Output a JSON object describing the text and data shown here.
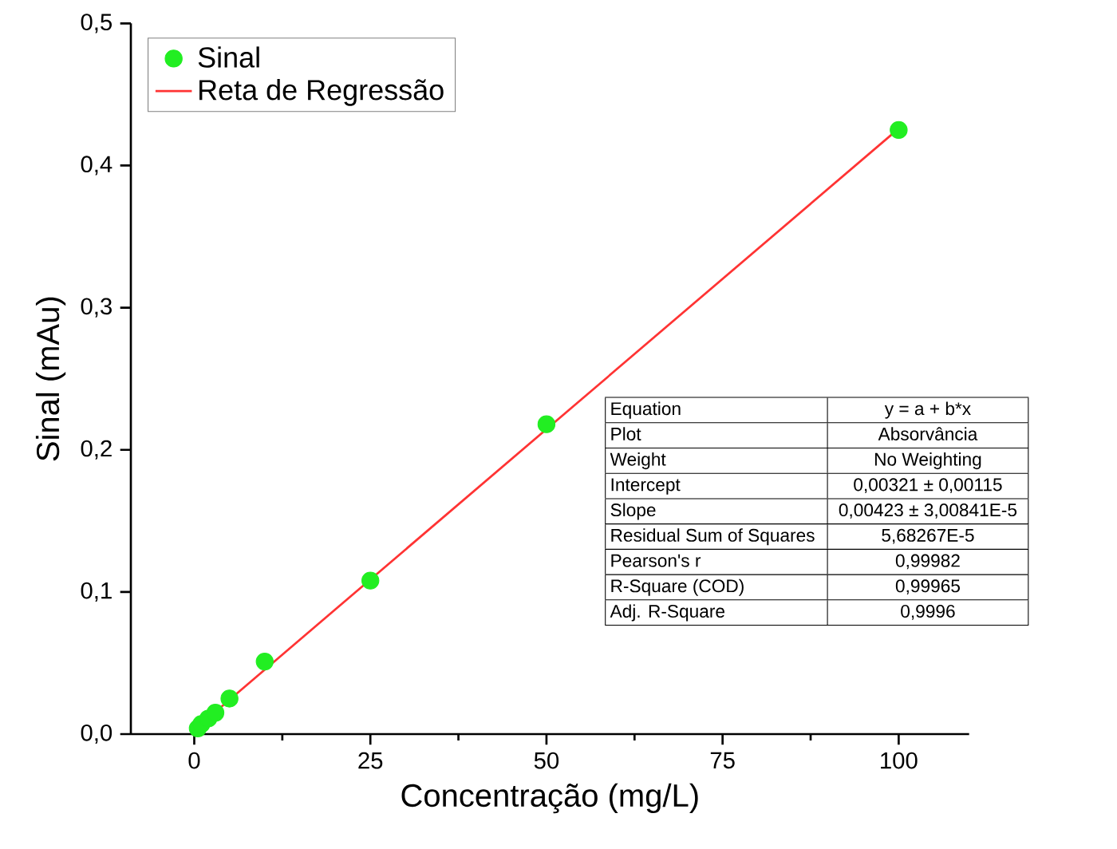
{
  "chart_data": {
    "type": "scatter",
    "xlabel": "Concentração (mg/L)",
    "ylabel": "Sinal (mAu)",
    "xlim": [
      -9,
      110
    ],
    "ylim": [
      0,
      0.5
    ],
    "xticks": [
      0,
      25,
      50,
      75,
      100
    ],
    "yticks": [
      {
        "value": 0,
        "label": "0,0"
      },
      {
        "value": 0.1,
        "label": "0,1"
      },
      {
        "value": 0.2,
        "label": "0,2"
      },
      {
        "value": 0.3,
        "label": "0,3"
      },
      {
        "value": 0.4,
        "label": "0,4"
      },
      {
        "value": 0.5,
        "label": "0,5"
      }
    ],
    "legend": "top left",
    "series": [
      {
        "name": "Sinal",
        "marker": "circle",
        "color": "#22ee22",
        "x": [
          0.5,
          1,
          2,
          3,
          5,
          10,
          25,
          50,
          100
        ],
        "values": [
          0.004,
          0.007,
          0.011,
          0.015,
          0.025,
          0.051,
          0.108,
          0.218,
          0.425
        ]
      },
      {
        "name": "Reta de Regressão",
        "type": "line",
        "marker": "none",
        "color": "#ff3333",
        "line_style": "solid",
        "x": [
          0,
          100
        ],
        "values": [
          0.003,
          0.426
        ]
      }
    ],
    "annotations": [
      "Equation",
      "y = a + b*x",
      "Plot",
      "Absorvância",
      "Weight",
      "No Weighting",
      "Intercept",
      "0,00321 ± 0,00115",
      "Slope",
      "0,00423 ± 3,00841E-5",
      "Residual Sum of Squares",
      "5,68267E-5",
      "Pearson's r",
      "0,99982",
      "R-Square (COD)",
      "0,99965",
      "Adj. R-Square",
      "0,9996"
    ]
  }
}
